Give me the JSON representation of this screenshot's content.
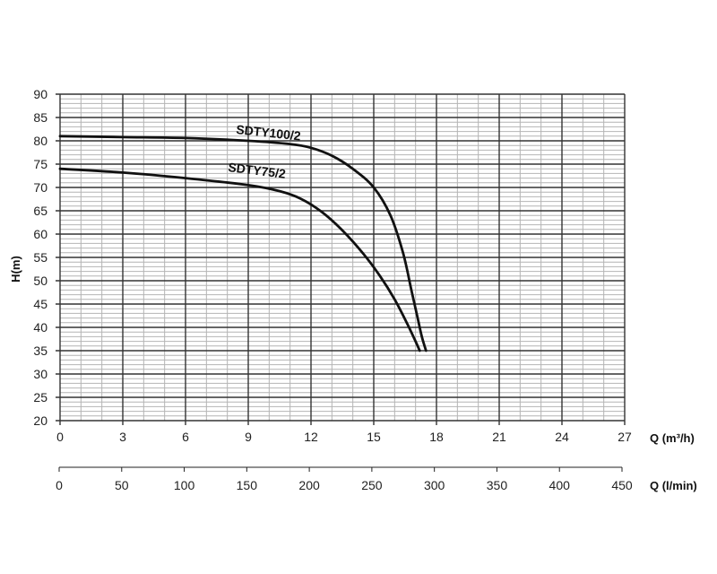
{
  "chart_data": {
    "type": "line",
    "xlabel": "Q (m³/h)",
    "x2label": "Q (l/min)",
    "ylabel": "H(m)",
    "xlim": [
      0,
      27
    ],
    "ylim": [
      20,
      90
    ],
    "x2lim": [
      0,
      450
    ],
    "xticks": [
      0,
      3,
      6,
      9,
      12,
      15,
      18,
      21,
      24,
      27
    ],
    "yticks": [
      20,
      25,
      30,
      35,
      40,
      45,
      50,
      55,
      60,
      65,
      70,
      75,
      80,
      85,
      90
    ],
    "x2ticks": [
      0,
      50,
      100,
      150,
      200,
      250,
      300,
      350,
      400,
      450
    ],
    "grid": true,
    "series": [
      {
        "name": "SDTY100/2",
        "x": [
          0,
          3,
          6,
          9,
          11,
          12,
          13,
          14,
          15,
          15.8,
          16.4,
          16.8,
          17.1,
          17.3,
          17.5
        ],
        "y": [
          81,
          80.8,
          80.6,
          80,
          79.3,
          78.5,
          76.8,
          74,
          70,
          64,
          56,
          48,
          42,
          38,
          35
        ]
      },
      {
        "name": "SDTY75/2",
        "x": [
          0,
          3,
          6,
          9,
          10.5,
          11.5,
          12.5,
          13.5,
          14.5,
          15.3,
          16,
          16.6,
          17,
          17.2
        ],
        "y": [
          74,
          73.2,
          72,
          70.5,
          69.2,
          67.6,
          64.8,
          60.8,
          55.8,
          51,
          46,
          40.8,
          37,
          35
        ]
      }
    ]
  }
}
